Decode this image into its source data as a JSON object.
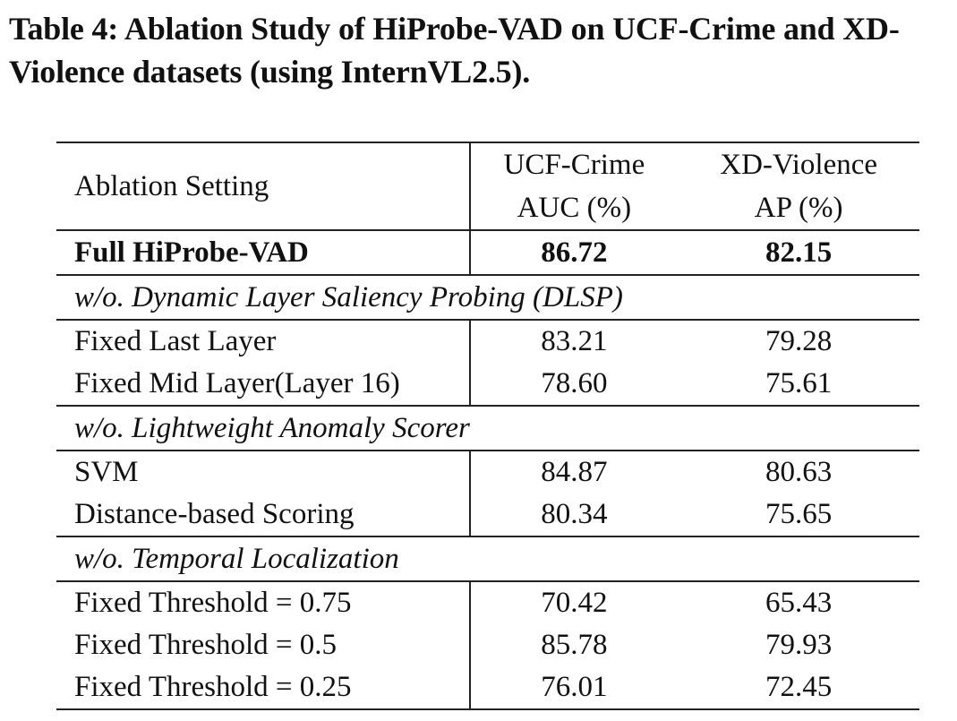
{
  "caption": "Table 4: Ablation Study of HiProbe-VAD on UCF-Crime and XD-Violence datasets (using InternVL2.5).",
  "header": {
    "setting": "Ablation Setting",
    "col1_line1": "UCF-Crime",
    "col1_line2": "AUC (%)",
    "col2_line1": "XD-Violence",
    "col2_line2": "AP (%)"
  },
  "full": {
    "label": "Full HiProbe-VAD",
    "ucf": "86.72",
    "xd": "82.15"
  },
  "sections": [
    {
      "title": "w/o. Dynamic Layer Saliency Probing (DLSP)",
      "rows": [
        {
          "label": "Fixed Last Layer",
          "ucf": "83.21",
          "xd": "79.28"
        },
        {
          "label": "Fixed Mid Layer(Layer 16)",
          "ucf": "78.60",
          "xd": "75.61"
        }
      ]
    },
    {
      "title": "w/o. Lightweight Anomaly Scorer",
      "rows": [
        {
          "label": "SVM",
          "ucf": "84.87",
          "xd": "80.63"
        },
        {
          "label": "Distance-based Scoring",
          "ucf": "80.34",
          "xd": "75.65"
        }
      ]
    },
    {
      "title": "w/o. Temporal Localization",
      "rows": [
        {
          "label": "Fixed Threshold = 0.75",
          "ucf": "70.42",
          "xd": "65.43"
        },
        {
          "label": "Fixed Threshold = 0.5",
          "ucf": "85.78",
          "xd": "79.93"
        },
        {
          "label": "Fixed Threshold = 0.25",
          "ucf": "76.01",
          "xd": "72.45"
        }
      ]
    }
  ]
}
